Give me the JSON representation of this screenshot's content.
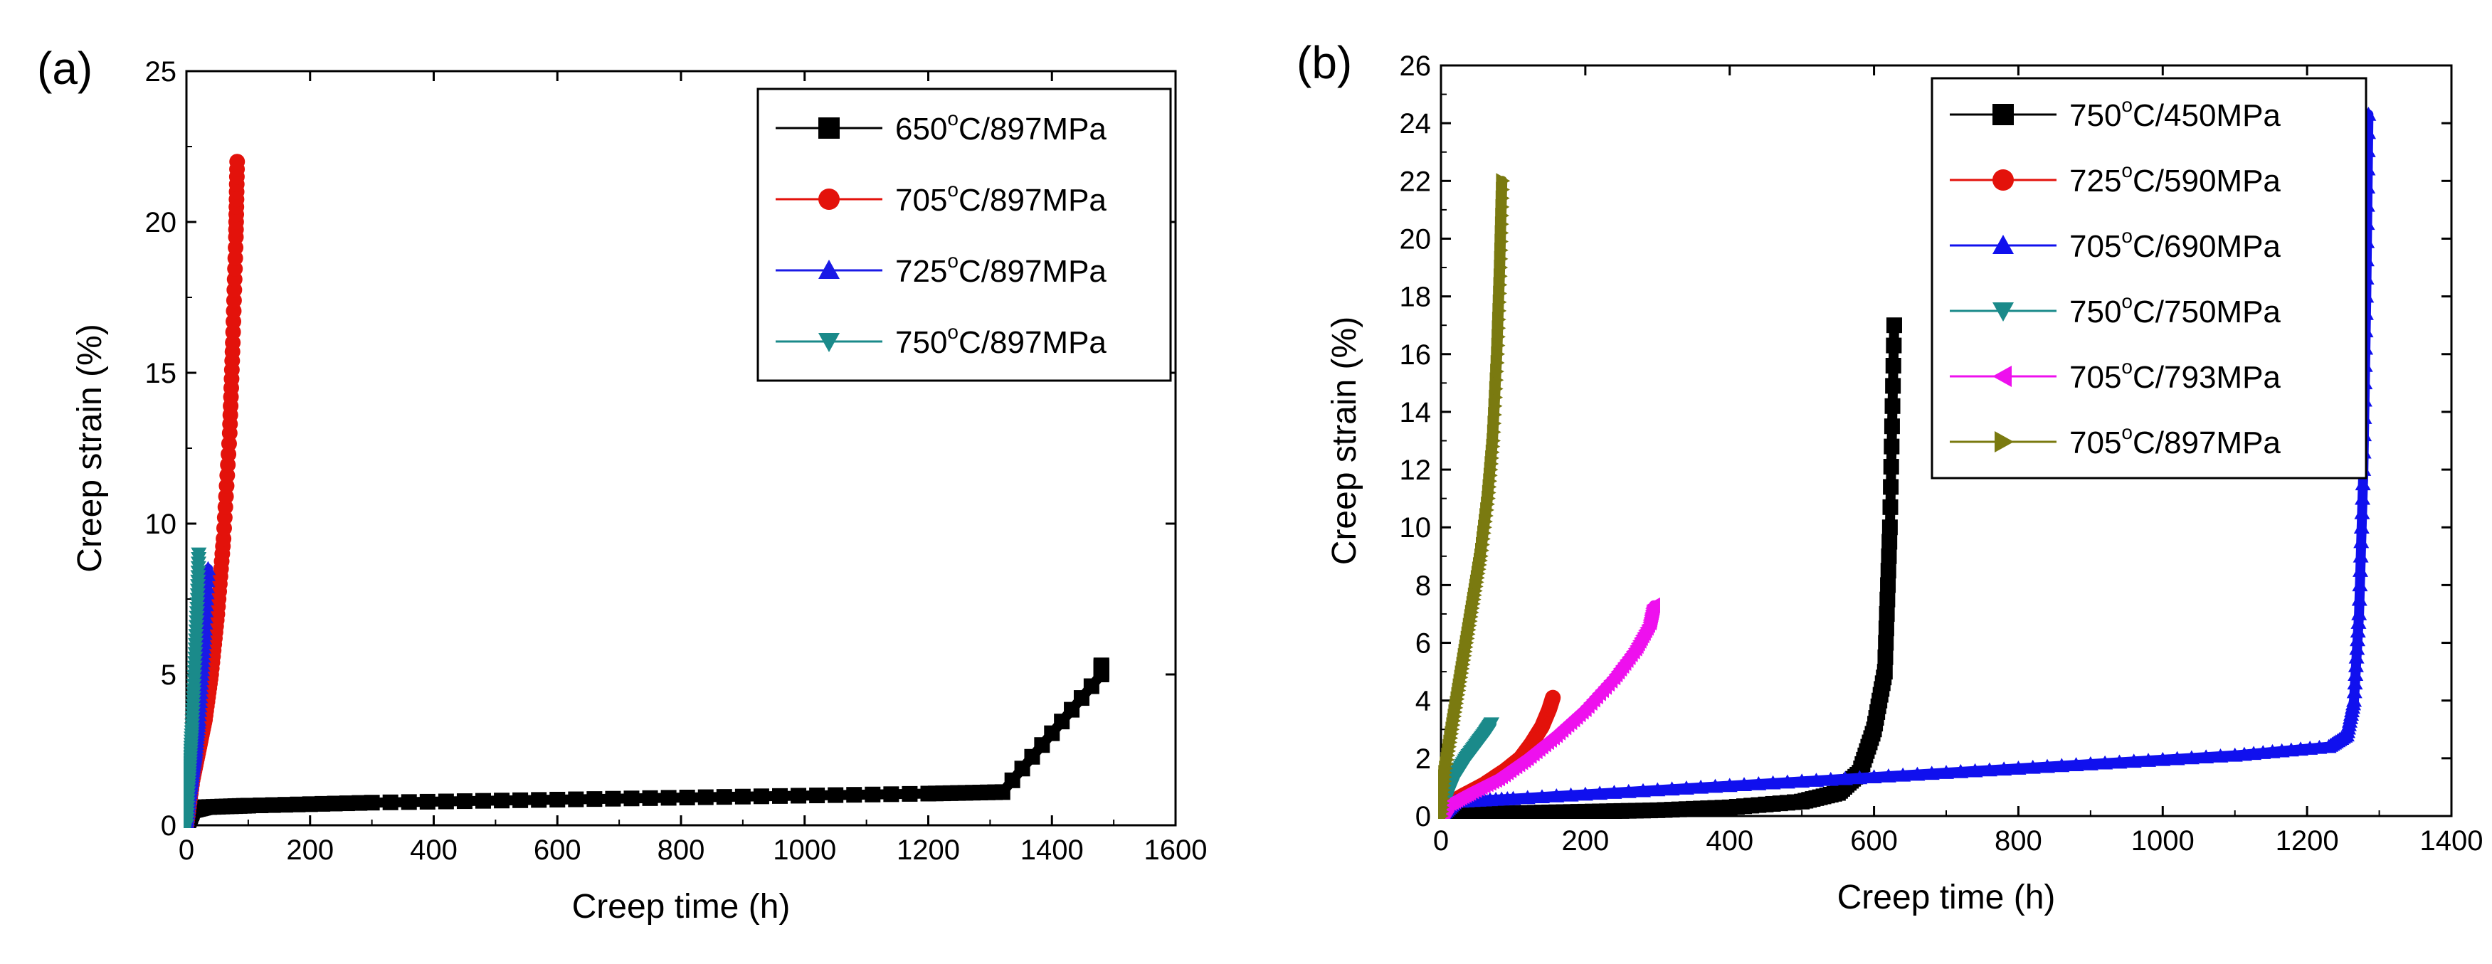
{
  "chart_data": [
    {
      "panel_label": "(a)",
      "type": "line",
      "xlabel": "Creep time (h)",
      "ylabel": "Creep strain (%)",
      "xlim": [
        0,
        1600
      ],
      "ylim": [
        0,
        25
      ],
      "xticks": [
        0,
        200,
        400,
        600,
        800,
        1000,
        1200,
        1400,
        1600
      ],
      "yticks": [
        0,
        5,
        10,
        15,
        20,
        25
      ],
      "legend_position": "top-right",
      "series": [
        {
          "name": "650°C/897MPa",
          "legend_pre": "650",
          "legend_sup": "o",
          "legend_post": "C/897MPa",
          "color": "#000000",
          "marker": "square",
          "x": [
            0,
            10,
            30,
            100,
            300,
            600,
            900,
            1200,
            1320,
            1480,
            1480
          ],
          "y": [
            0,
            0.5,
            0.6,
            0.65,
            0.75,
            0.85,
            0.95,
            1.05,
            1.1,
            5.0,
            5.3
          ]
        },
        {
          "name": "705°C/897MPa",
          "legend_pre": "705",
          "legend_sup": "o",
          "legend_post": "C/897MPa",
          "color": "#e3120b",
          "marker": "circle",
          "x": [
            0,
            10,
            20,
            30,
            40,
            50,
            60,
            70,
            75,
            80,
            82
          ],
          "y": [
            0,
            1.5,
            2.5,
            3.5,
            5,
            7,
            9.5,
            13,
            16,
            19.5,
            22
          ]
        },
        {
          "name": "725°C/897MPa",
          "legend_pre": "725",
          "legend_sup": "o",
          "legend_post": "C/897MPa",
          "color": "#1a1ae6",
          "marker": "triangle-up",
          "x": [
            0,
            5,
            10,
            15,
            20,
            25,
            30,
            35
          ],
          "y": [
            0,
            1,
            1.8,
            2.5,
            3.5,
            5,
            6.5,
            8.5
          ]
        },
        {
          "name": "750°C/897MPa",
          "legend_pre": "750",
          "legend_sup": "o",
          "legend_post": "C/897MPa",
          "color": "#1a8a8a",
          "marker": "triangle-down",
          "x": [
            0,
            3,
            6,
            9,
            12,
            15,
            18,
            20
          ],
          "y": [
            0,
            1.2,
            2.2,
            3.2,
            4.5,
            6,
            7.5,
            9
          ]
        }
      ]
    },
    {
      "panel_label": "(b)",
      "type": "line",
      "xlabel": "Creep time (h)",
      "ylabel": "Creep strain (%)",
      "xlim": [
        0,
        1400
      ],
      "ylim": [
        0,
        26
      ],
      "xticks": [
        0,
        200,
        400,
        600,
        800,
        1000,
        1200,
        1400
      ],
      "yticks": [
        0,
        2,
        4,
        6,
        8,
        10,
        12,
        14,
        16,
        18,
        20,
        22,
        24,
        26
      ],
      "legend_position": "top-right",
      "series": [
        {
          "name": "750°C/450MPa",
          "legend_pre": "750",
          "legend_sup": "o",
          "legend_post": "C/450MPa",
          "color": "#000000",
          "marker": "square",
          "x": [
            0,
            20,
            100,
            200,
            300,
            400,
            500,
            550,
            580,
            600,
            615,
            622,
            628
          ],
          "y": [
            0,
            0.05,
            0.1,
            0.15,
            0.2,
            0.3,
            0.5,
            0.8,
            1.5,
            3,
            5,
            10,
            17
          ]
        },
        {
          "name": "725°C/590MPa",
          "legend_pre": "725",
          "legend_sup": "o",
          "legend_post": "C/590MPa",
          "color": "#e3120b",
          "marker": "circle",
          "x": [
            0,
            10,
            30,
            60,
            90,
            110,
            125,
            140,
            150,
            155
          ],
          "y": [
            0,
            0.4,
            0.7,
            1.1,
            1.6,
            2.0,
            2.5,
            3.1,
            3.7,
            4.1
          ]
        },
        {
          "name": "705°C/690MPa",
          "legend_pre": "705",
          "legend_sup": "o",
          "legend_post": "C/690MPa",
          "color": "#1010ee",
          "marker": "triangle-up",
          "x": [
            0,
            20,
            100,
            300,
            500,
            700,
            900,
            1100,
            1230,
            1255,
            1265,
            1272,
            1278,
            1282,
            1285
          ],
          "y": [
            0,
            0.5,
            0.6,
            0.9,
            1.2,
            1.5,
            1.8,
            2.1,
            2.4,
            2.8,
            4,
            7,
            12,
            18,
            24.3
          ]
        },
        {
          "name": "750°C/750MPa",
          "legend_pre": "750",
          "legend_sup": "o",
          "legend_post": "C/750MPa",
          "color": "#1a8a8a",
          "marker": "triangle-down",
          "x": [
            0,
            10,
            20,
            35,
            50,
            62,
            70
          ],
          "y": [
            0,
            0.8,
            1.4,
            2.0,
            2.5,
            2.9,
            3.2
          ]
        },
        {
          "name": "705°C/793MPa",
          "legend_pre": "705",
          "legend_sup": "o",
          "legend_post": "C/793MPa",
          "color": "#ee10ee",
          "marker": "triangle-left",
          "x": [
            0,
            10,
            40,
            80,
            120,
            160,
            200,
            240,
            270,
            290,
            295
          ],
          "y": [
            0,
            0.4,
            0.8,
            1.3,
            2.0,
            2.8,
            3.7,
            4.8,
            5.8,
            6.7,
            7.3
          ]
        },
        {
          "name": "705°C/897MPa",
          "legend_pre": "705",
          "legend_sup": "o",
          "legend_post": "C/897MPa",
          "color": "#7a7a10",
          "marker": "triangle-right",
          "x": [
            0,
            5,
            15,
            25,
            35,
            45,
            55,
            65,
            72,
            78,
            82,
            85
          ],
          "y": [
            0,
            1.5,
            3,
            4.5,
            6,
            7.5,
            9,
            11,
            13,
            16,
            19,
            22
          ]
        }
      ]
    }
  ]
}
